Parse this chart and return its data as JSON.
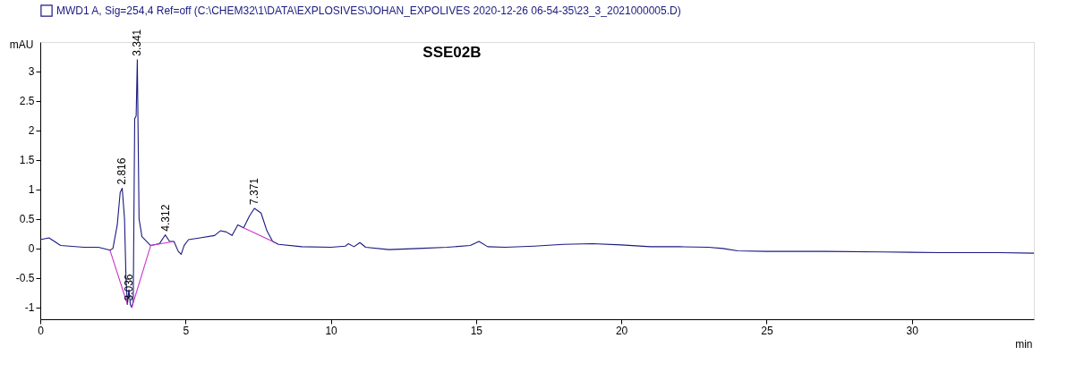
{
  "chart_data": {
    "type": "line",
    "title": "SSE02B",
    "xlabel": "min",
    "ylabel": "mAU",
    "xlim": [
      0,
      34.2
    ],
    "xticks": [
      0,
      5,
      10,
      15,
      20,
      25,
      30
    ],
    "ylim": [
      -1.2,
      3.5
    ],
    "yticks": [
      -1,
      -0.5,
      0,
      0.5,
      1,
      1.5,
      2,
      2.5,
      3
    ],
    "legend": "top",
    "grid": false,
    "line_style": "solid",
    "marker": "none",
    "series": [
      {
        "name": "MWD1 A, Sig=254,4 Ref=off (C:\\CHEM32\\1\\DATA\\EXPLOSIVES\\JOHAN_EXPOLIVES 2020-12-26 06-54-35\\23_3_2021000005.D)",
        "color": "#1a1a80",
        "x": [
          0,
          0.3,
          0.7,
          1.5,
          2.0,
          2.4,
          2.5,
          2.65,
          2.75,
          2.82,
          2.9,
          2.95,
          3.0,
          3.05,
          3.1,
          3.15,
          3.2,
          3.25,
          3.3,
          3.34,
          3.4,
          3.5,
          3.8,
          4.1,
          4.3,
          4.45,
          4.6,
          4.75,
          4.85,
          4.95,
          5.1,
          5.5,
          6.0,
          6.2,
          6.4,
          6.6,
          6.8,
          7.0,
          7.2,
          7.371,
          7.6,
          7.8,
          8.0,
          8.2,
          9.0,
          10.0,
          10.5,
          10.6,
          10.8,
          11.0,
          11.2,
          12,
          13,
          14,
          14.8,
          15.1,
          15.4,
          16,
          17,
          18,
          19,
          20,
          21,
          22,
          23,
          23.5,
          24,
          25,
          27,
          29,
          31,
          33,
          34.2
        ],
        "values": [
          0.15,
          0.18,
          0.05,
          0.02,
          0.02,
          -0.03,
          0.0,
          0.4,
          0.95,
          1.02,
          0.5,
          -0.5,
          -0.95,
          -0.7,
          -0.95,
          -1.0,
          -0.9,
          2.2,
          2.25,
          3.2,
          0.5,
          0.2,
          0.05,
          0.08,
          0.23,
          0.12,
          0.12,
          -0.05,
          -0.1,
          0.05,
          0.15,
          0.18,
          0.22,
          0.3,
          0.28,
          0.22,
          0.4,
          0.35,
          0.55,
          0.68,
          0.6,
          0.3,
          0.12,
          0.07,
          0.03,
          0.02,
          0.04,
          0.08,
          0.03,
          0.1,
          0.02,
          -0.02,
          0.0,
          0.02,
          0.05,
          0.12,
          0.03,
          0.02,
          0.04,
          0.07,
          0.08,
          0.06,
          0.03,
          0.03,
          0.02,
          0.0,
          -0.04,
          -0.05,
          -0.05,
          -0.06,
          -0.07,
          -0.07,
          -0.08
        ]
      },
      {
        "type": "line",
        "color": "#cc33cc",
        "x": [
          2.4,
          3.0
        ],
        "values": [
          -0.03,
          -0.95
        ]
      },
      {
        "type": "line",
        "color": "#cc33cc",
        "x": [
          3.15,
          3.8
        ],
        "values": [
          -1.0,
          0.05
        ]
      },
      {
        "type": "line",
        "color": "#cc33cc",
        "x": [
          3.8,
          4.6
        ],
        "values": [
          0.05,
          0.12
        ]
      },
      {
        "type": "line",
        "color": "#cc33cc",
        "x": [
          7.0,
          8.0
        ],
        "values": [
          0.35,
          0.12
        ]
      }
    ],
    "annotations": [
      {
        "text": "2.816",
        "x": 2.816,
        "y": 1.02
      },
      {
        "text": "3.341",
        "x": 3.341,
        "y": 3.2
      },
      {
        "text": "3.036",
        "x": 3.036,
        "y": -0.95
      },
      {
        "text": "4.312",
        "x": 4.312,
        "y": 0.23
      },
      {
        "text": "7.371",
        "x": 7.371,
        "y": 0.68
      }
    ]
  }
}
